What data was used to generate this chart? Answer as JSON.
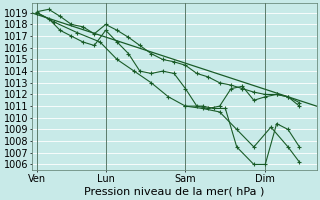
{
  "xlabel": "Pression niveau de la mer( hPa )",
  "background_color": "#c8eae8",
  "grid_color": "#b8dedd",
  "line_color": "#1a5c28",
  "ylim": [
    1005.5,
    1019.8
  ],
  "yticks": [
    1006,
    1007,
    1008,
    1009,
    1010,
    1011,
    1012,
    1013,
    1014,
    1015,
    1016,
    1017,
    1018,
    1019
  ],
  "day_labels": [
    "Ven",
    "Lun",
    "Sam",
    "Dim"
  ],
  "day_positions": [
    0.5,
    6.5,
    13.5,
    20.5
  ],
  "vline_positions": [
    0.5,
    6.5,
    13.5,
    20.5
  ],
  "xlim": [
    0,
    25
  ],
  "trend_x": [
    0,
    25
  ],
  "trend_y": [
    1019.0,
    1011.0
  ],
  "series_a_x": [
    0.5,
    1.5,
    2.5,
    3.5,
    4.5,
    5.5,
    6.5,
    7.5,
    8.5,
    9.5,
    10.5,
    11.5,
    12.5,
    13.5,
    14.5,
    15.5,
    16.5,
    17.5,
    18.5,
    19.5,
    20.5,
    21.5,
    22.5,
    23.5
  ],
  "series_a_y": [
    1019.1,
    1019.3,
    1018.7,
    1018.0,
    1017.8,
    1017.2,
    1018.0,
    1017.5,
    1016.9,
    1016.2,
    1015.5,
    1015.0,
    1014.8,
    1014.5,
    1013.8,
    1013.5,
    1013.0,
    1012.8,
    1012.5,
    1012.2,
    1012.0,
    1012.0,
    1011.8,
    1011.3
  ],
  "series_b_x": [
    0.5,
    1.5,
    2.5,
    3.5,
    4.5,
    5.5,
    6.5,
    7.5,
    8.5,
    9.5,
    10.5,
    11.5,
    12.5,
    13.5,
    14.5,
    15.5,
    16.5,
    17.5,
    18.5,
    19.5,
    20.5,
    21.5,
    22.5,
    23.5
  ],
  "series_b_y": [
    1019.0,
    1018.5,
    1017.5,
    1017.0,
    1016.5,
    1016.2,
    1017.5,
    1016.5,
    1015.5,
    1014.0,
    1013.8,
    1014.0,
    1013.8,
    1012.5,
    1011.0,
    1010.8,
    1011.0,
    1012.5,
    1012.7,
    1011.5,
    1011.8,
    1012.0,
    1011.8,
    1011.0
  ],
  "series_c_x": [
    0.5,
    2.0,
    4.0,
    6.0,
    7.5,
    9.0,
    10.5,
    12.0,
    13.5,
    15.0,
    16.5,
    18.0,
    19.5,
    21.0,
    22.5,
    23.5
  ],
  "series_c_y": [
    1019.0,
    1018.2,
    1017.3,
    1016.5,
    1015.0,
    1014.0,
    1013.0,
    1011.8,
    1011.0,
    1010.8,
    1010.5,
    1009.0,
    1007.5,
    1009.2,
    1007.5,
    1006.2
  ],
  "series_d_x": [
    13.5,
    15.0,
    16.0,
    17.0,
    18.0,
    19.5,
    20.5,
    21.5,
    22.5,
    23.5
  ],
  "series_d_y": [
    1011.0,
    1011.0,
    1010.8,
    1010.8,
    1007.5,
    1006.0,
    1006.0,
    1009.5,
    1009.0,
    1007.5
  ],
  "fontsize": 7,
  "xlabel_fontsize": 8
}
